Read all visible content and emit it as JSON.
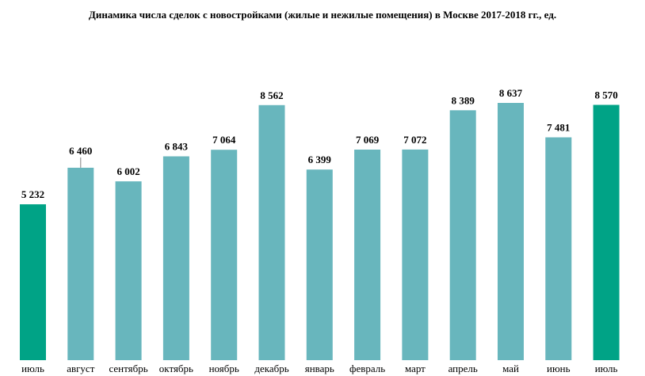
{
  "chart_data": {
    "type": "bar",
    "title": "Динамика числа сделок с новостройками (жилые и нежилые помещения) в Москве 2017-2018 гг., ед.",
    "categories": [
      "июль",
      "август",
      "сентябрь",
      "октябрь",
      "ноябрь",
      "декабрь",
      "январь",
      "февраль",
      "март",
      "апрель",
      "май",
      "июнь",
      "июль"
    ],
    "values": [
      5232,
      6460,
      6002,
      6843,
      7064,
      8562,
      6399,
      7069,
      7072,
      8389,
      8637,
      7481,
      8570
    ],
    "value_labels": [
      "5 232",
      "6 460",
      "6 002",
      "6 843",
      "7 064",
      "8 562",
      "6 399",
      "7 069",
      "7 072",
      "8 389",
      "8 637",
      "7 481",
      "8 570"
    ],
    "highlighted": [
      0,
      12
    ],
    "colors": {
      "bar": "#68b6bd",
      "highlight": "#00a386"
    },
    "ylim": [
      0,
      9000
    ],
    "grid": false,
    "legend": false
  }
}
